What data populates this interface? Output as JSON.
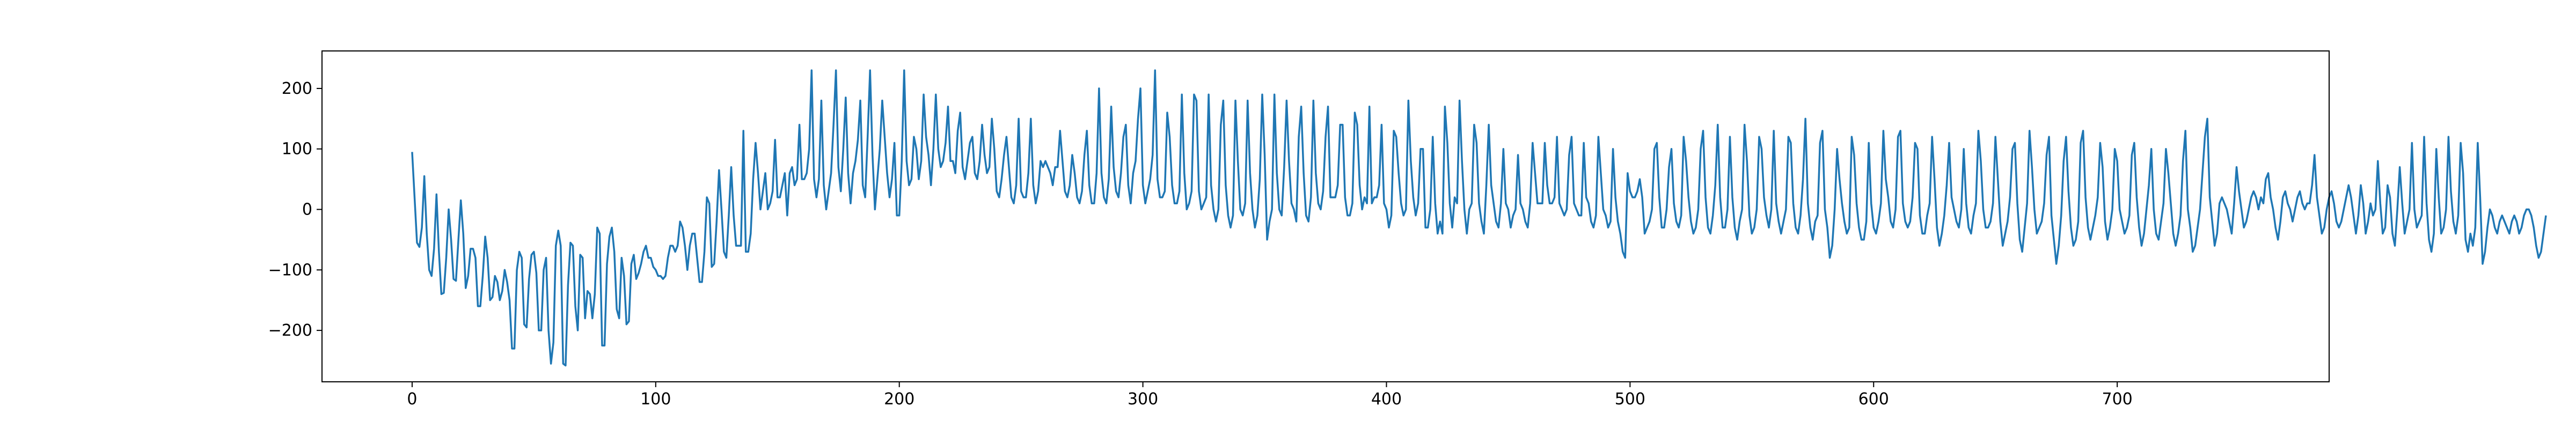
{
  "chart_data": {
    "type": "line",
    "title": "",
    "xlabel": "",
    "ylabel": "",
    "xlim": [
      -37,
      787
    ],
    "ylim": [
      -285,
      262
    ],
    "x_ticks": [
      0,
      100,
      200,
      300,
      400,
      500,
      600,
      700
    ],
    "x_tick_labels": [
      "0",
      "100",
      "200",
      "300",
      "400",
      "500",
      "600",
      "700"
    ],
    "y_ticks": [
      -200,
      -100,
      0,
      100,
      200
    ],
    "y_tick_labels": [
      "−200",
      "−100",
      "0",
      "100",
      "200"
    ],
    "grid": false,
    "legend": "none",
    "line_color": "#1f77b4",
    "series": [
      {
        "x_start": 0,
        "x_step": 1,
        "values": [
          95,
          20,
          -55,
          -62,
          -30,
          55,
          -40,
          -100,
          -110,
          -65,
          25,
          -70,
          -140,
          -138,
          -80,
          0,
          -50,
          -115,
          -118,
          -50,
          15,
          -40,
          -130,
          -110,
          -65,
          -65,
          -80,
          -160,
          -160,
          -110,
          -45,
          -80,
          -150,
          -145,
          -110,
          -120,
          -150,
          -135,
          -100,
          -120,
          -150,
          -230,
          -230,
          -100,
          -70,
          -80,
          -190,
          -195,
          -115,
          -75,
          -70,
          -105,
          -200,
          -200,
          -100,
          -80,
          -200,
          -255,
          -220,
          -60,
          -35,
          -60,
          -255,
          -258,
          -125,
          -55,
          -60,
          -160,
          -200,
          -75,
          -80,
          -180,
          -135,
          -140,
          -180,
          -140,
          -30,
          -40,
          -225,
          -225,
          -90,
          -45,
          -30,
          -70,
          -165,
          -180,
          -80,
          -110,
          -190,
          -185,
          -90,
          -75,
          -115,
          -105,
          -90,
          -70,
          -60,
          -80,
          -80,
          -95,
          -100,
          -110,
          -110,
          -115,
          -110,
          -80,
          -60,
          -60,
          -70,
          -60,
          -20,
          -30,
          -60,
          -100,
          -60,
          -40,
          -40,
          -80,
          -120,
          -120,
          -70,
          20,
          10,
          -95,
          -90,
          -20,
          65,
          0,
          -70,
          -80,
          -10,
          70,
          -10,
          -60,
          -60,
          -60,
          130,
          -70,
          -70,
          -40,
          50,
          110,
          60,
          0,
          30,
          60,
          0,
          10,
          30,
          115,
          20,
          20,
          40,
          60,
          -10,
          60,
          70,
          40,
          50,
          140,
          50,
          50,
          60,
          100,
          230,
          50,
          20,
          50,
          180,
          40,
          0,
          30,
          60,
          140,
          230,
          70,
          30,
          100,
          185,
          60,
          10,
          60,
          80,
          115,
          180,
          40,
          20,
          120,
          230,
          90,
          0,
          50,
          100,
          180,
          120,
          60,
          20,
          50,
          110,
          -10,
          -10,
          80,
          230,
          80,
          40,
          50,
          120,
          100,
          50,
          80,
          190,
          120,
          90,
          40,
          100,
          190,
          100,
          70,
          80,
          110,
          170,
          80,
          80,
          60,
          130,
          160,
          70,
          50,
          80,
          110,
          120,
          60,
          50,
          80,
          140,
          90,
          60,
          70,
          150,
          100,
          30,
          20,
          50,
          90,
          120,
          70,
          20,
          10,
          40,
          150,
          30,
          20,
          20,
          60,
          150,
          40,
          10,
          30,
          80,
          70,
          80,
          70,
          60,
          40,
          70,
          70,
          130,
          80,
          30,
          20,
          40,
          90,
          60,
          20,
          10,
          30,
          90,
          130,
          40,
          10,
          10,
          60,
          200,
          60,
          20,
          10,
          50,
          170,
          70,
          30,
          20,
          60,
          120,
          140,
          40,
          10,
          60,
          80,
          150,
          200,
          40,
          10,
          30,
          50,
          90,
          230,
          50,
          20,
          20,
          30,
          160,
          120,
          40,
          10,
          10,
          30,
          190,
          60,
          0,
          10,
          30,
          190,
          180,
          30,
          0,
          10,
          20,
          190,
          40,
          0,
          -20,
          0,
          140,
          180,
          40,
          -10,
          -30,
          -10,
          180,
          80,
          0,
          -10,
          10,
          180,
          60,
          0,
          -30,
          -10,
          50,
          190,
          90,
          -50,
          -20,
          0,
          190,
          60,
          0,
          -10,
          70,
          180,
          80,
          10,
          0,
          -20,
          120,
          170,
          60,
          -10,
          -20,
          20,
          180,
          60,
          10,
          0,
          30,
          120,
          170,
          20,
          20,
          20,
          40,
          140,
          140,
          20,
          -10,
          -10,
          10,
          160,
          140,
          40,
          0,
          20,
          10,
          170,
          10,
          20,
          20,
          40,
          140,
          10,
          0,
          -30,
          -10,
          130,
          120,
          60,
          10,
          -10,
          0,
          180,
          80,
          20,
          -10,
          10,
          100,
          100,
          -30,
          -30,
          0,
          120,
          10,
          -40,
          -20,
          -40,
          170,
          110,
          10,
          -30,
          20,
          10,
          180,
          80,
          0,
          -40,
          0,
          10,
          140,
          110,
          10,
          -20,
          -40,
          40,
          140,
          40,
          10,
          -20,
          -30,
          10,
          100,
          10,
          0,
          -30,
          -10,
          0,
          90,
          10,
          0,
          -20,
          -30,
          10,
          110,
          60,
          10,
          10,
          10,
          110,
          40,
          10,
          10,
          20,
          120,
          10,
          0,
          -10,
          0,
          90,
          120,
          10,
          0,
          -10,
          -10,
          110,
          20,
          10,
          -20,
          -30,
          -10,
          120,
          60,
          0,
          -10,
          -30,
          -20,
          100,
          20,
          -20,
          -40,
          -70,
          -80,
          60,
          30,
          20,
          20,
          30,
          50,
          20,
          -40,
          -30,
          -20,
          0,
          100,
          110,
          20,
          -30,
          -30,
          0,
          70,
          100,
          10,
          -20,
          -30,
          -10,
          120,
          80,
          20,
          -20,
          -40,
          -30,
          0,
          100,
          130,
          20,
          -30,
          -40,
          -10,
          40,
          140,
          20,
          -30,
          -30,
          0,
          120,
          20,
          -30,
          -50,
          -20,
          0,
          140,
          80,
          -10,
          -40,
          -30,
          0,
          120,
          100,
          20,
          -10,
          -30,
          0,
          130,
          10,
          -20,
          -40,
          -20,
          0,
          120,
          110,
          10,
          -30,
          -40,
          -10,
          50,
          150,
          10,
          -30,
          -50,
          -20,
          -10,
          110,
          130,
          0,
          -30,
          -80,
          -60,
          0,
          100,
          50,
          10,
          -20,
          -40,
          -30,
          120,
          90,
          10,
          -30,
          -50,
          -50,
          -20,
          110,
          10,
          -30,
          -40,
          -20,
          10,
          130,
          50,
          20,
          -20,
          -30,
          0,
          120,
          130,
          10,
          -20,
          -30,
          -20,
          20,
          110,
          100,
          -10,
          -40,
          -40,
          -10,
          10,
          120,
          50,
          -30,
          -60,
          -40,
          -10,
          40,
          110,
          20,
          0,
          -20,
          -30,
          0,
          100,
          10,
          -30,
          -40,
          -10,
          10,
          130,
          80,
          0,
          -30,
          -30,
          -20,
          10,
          120,
          50,
          -20,
          -60,
          -40,
          -20,
          20,
          100,
          110,
          10,
          -50,
          -70,
          -30,
          10,
          130,
          70,
          0,
          -40,
          -30,
          -20,
          10,
          90,
          120,
          -10,
          -50,
          -90,
          -60,
          -10,
          80,
          120,
          30,
          -30,
          -60,
          -50,
          -20,
          110,
          130,
          20,
          -30,
          -50,
          -30,
          -10,
          20,
          110,
          70,
          -20,
          -50,
          -30,
          0,
          100,
          80,
          0,
          -20,
          -40,
          -30,
          -10,
          90,
          110,
          20,
          -30,
          -60,
          -40,
          0,
          40,
          100,
          0,
          -40,
          -50,
          -20,
          10,
          100,
          60,
          10,
          -40,
          -60,
          -40,
          -10,
          80,
          130,
          0,
          -30,
          -70,
          -60,
          -30,
          0,
          60,
          120,
          150,
          20,
          -20,
          -60,
          -40,
          10,
          20,
          10,
          0,
          -20,
          -40,
          10,
          70,
          30,
          0,
          -30,
          -20,
          0,
          20,
          30,
          20,
          0,
          20,
          10,
          50,
          60,
          20,
          0,
          -30,
          -50,
          -20,
          20,
          30,
          10,
          0,
          -20,
          0,
          20,
          30,
          10,
          0,
          10,
          10,
          40,
          90,
          20,
          -10,
          -40,
          -30,
          0,
          20,
          30,
          10,
          -20,
          -30,
          -20,
          0,
          20,
          40,
          20,
          -10,
          -40,
          -10,
          40,
          10,
          -40,
          -20,
          10,
          -10,
          0,
          80,
          10,
          -40,
          -30,
          40,
          20,
          -40,
          -60,
          0,
          70,
          10,
          -40,
          -20,
          0,
          110,
          0,
          -30,
          -20,
          -10,
          120,
          10,
          -50,
          -70,
          -40,
          100,
          20,
          -40,
          -30,
          0,
          120,
          30,
          -20,
          -40,
          -10,
          110,
          60,
          -50,
          -70,
          -40,
          -60,
          -30,
          110,
          20,
          -90,
          -70,
          -30,
          0,
          -10,
          -30,
          -40,
          -20,
          -10,
          -20,
          -30,
          -40,
          -20,
          -10,
          -20,
          -40,
          -30,
          -10,
          0,
          0,
          -10,
          -30,
          -60,
          -80,
          -70,
          -40,
          -10
        ]
      }
    ]
  }
}
